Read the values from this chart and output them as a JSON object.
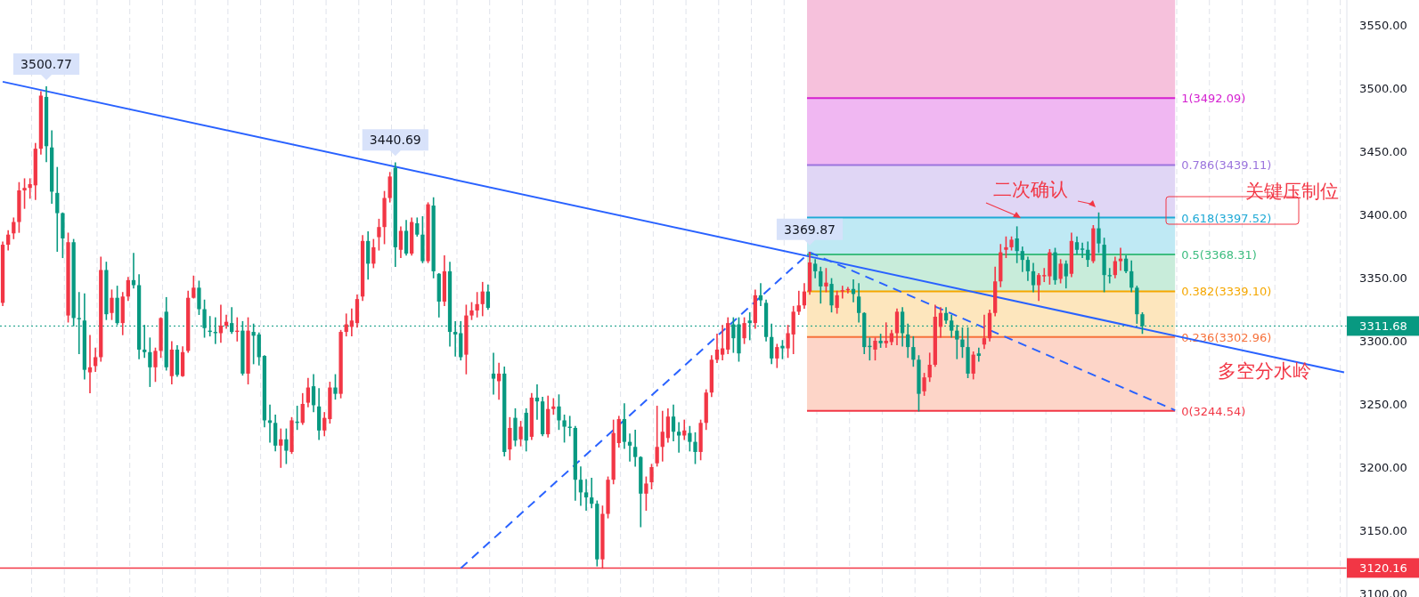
{
  "chart_data": {
    "type": "candlestick",
    "tick_labels": "y",
    "ylim": [
      3097.2,
      3569.7
    ],
    "yticks": [
      {
        "value": 3100,
        "label": "3100.00"
      },
      {
        "value": 3150,
        "label": "3150.00"
      },
      {
        "value": 3200,
        "label": "3200.00"
      },
      {
        "value": 3250,
        "label": "3250.00"
      },
      {
        "value": 3300,
        "label": "3300.00"
      },
      {
        "value": 3350,
        "label": "3350.00"
      },
      {
        "value": 3400,
        "label": "3400.00"
      },
      {
        "value": 3450,
        "label": "3450.00"
      },
      {
        "value": 3500,
        "label": "3500.00"
      },
      {
        "value": 3550,
        "label": "3550.00"
      }
    ],
    "colors": [
      "#f23645",
      "#f23645",
      "#f23645",
      "#f23645",
      "#f23645",
      "#f23645",
      "#f23645",
      "#f23645",
      "#089981",
      "#089981",
      "#089981",
      "#089981",
      "#f23645",
      "#089981",
      "#089981",
      "#089981",
      "#f23645",
      "#f23645",
      "#f23645",
      "#089981",
      "#f23645",
      "#089981",
      "#f23645",
      "#f23645",
      "#089981",
      "#089981",
      "#089981",
      "#089981",
      "#f23645",
      "#f23645",
      "#089981",
      "#f23645",
      "#089981",
      "#f23645",
      "#f23645",
      "#f23645",
      "#089981",
      "#089981",
      "#089981",
      "#089981",
      "#f23645",
      "#f23645",
      "#089981",
      "#f23645",
      "#089981",
      "#f23645",
      "#089981",
      "#089981",
      "#089981",
      "#089981",
      "#089981",
      "#f23645",
      "#089981",
      "#f23645",
      "#089981",
      "#f23645",
      "#f23645",
      "#089981",
      "#089981",
      "#f23645",
      "#f23645",
      "#089981",
      "#f23645",
      "#f23645",
      "#f23645",
      "#f23645",
      "#f23645",
      "#089981",
      "#f23645",
      "#f23645",
      "#f23645",
      "#f23645",
      "#089981",
      "#f23645",
      "#089981",
      "#f23645",
      "#089981",
      "#089981",
      "#f23645",
      "#089981",
      "#089981",
      "#f23645",
      "#089981",
      "#089981",
      "#089981",
      "#f23645",
      "#f23645",
      "#f23645",
      "#f23645",
      "#089981",
      "#089981",
      "#f23645",
      "#089981",
      "#f23645",
      "#089981",
      "#f23645",
      "#089981",
      "#f23645",
      "#089981",
      "#089981",
      "#f23645",
      "#f23645",
      "#089981",
      "#089981",
      "#089981",
      "#089981",
      "#089981",
      "#089981",
      "#089981",
      "#089981",
      "#f23645",
      "#f23645",
      "#f23645",
      "#f23645",
      "#089981",
      "#089981",
      "#089981",
      "#089981",
      "#f23645",
      "#f23645",
      "#f23645",
      "#f23645",
      "#f23645",
      "#089981",
      "#089981",
      "#f23645",
      "#089981",
      "#089981",
      "#f23645",
      "#f23645",
      "#f23645",
      "#f23645",
      "#f23645",
      "#f23645",
      "#089981",
      "#089981",
      "#f23645",
      "#089981",
      "#f23645",
      "#089981",
      "#089981",
      "#089981",
      "#f23645",
      "#089981",
      "#f23645",
      "#f23645",
      "#f23645",
      "#f23645",
      "#f23645",
      "#089981",
      "#089981",
      "#f23645",
      "#089981",
      "#f23645",
      "#f23645",
      "#f23645",
      "#089981",
      "#089981",
      "#089981",
      "#089981",
      "#f23645",
      "#089981",
      "#f23645",
      "#f23645",
      "#f23645",
      "#089981",
      "#089981",
      "#089981",
      "#089981",
      "#f23645",
      "#f23645",
      "#f23645",
      "#f23645",
      "#089981",
      "#089981",
      "#089981",
      "#089981",
      "#089981",
      "#f23645",
      "#089981",
      "#f23645",
      "#f23645",
      "#f23645",
      "#f23645",
      "#f23645",
      "#f23645",
      "#089981",
      "#089981",
      "#089981",
      "#089981",
      "#f23645",
      "#f23645",
      "#f23645",
      "#089981",
      "#f23645",
      "#089981",
      "#f23645",
      "#089981",
      "#089981",
      "#089981",
      "#f23645",
      "#089981",
      "#089981",
      "#089981",
      "#f23645",
      "#f23645",
      "#089981",
      "#089981",
      "#089981",
      "#089981",
      null,
      null,
      null,
      null,
      null,
      null,
      null,
      null,
      null,
      null,
      null,
      null,
      null,
      null,
      null,
      null,
      null,
      null,
      null,
      null,
      null,
      null,
      null,
      null,
      null,
      null,
      null,
      null,
      null,
      null,
      null,
      null,
      null,
      null,
      null,
      null,
      null
    ],
    "categories": [
      null,
      null,
      null,
      null,
      null,
      null,
      null,
      null,
      null,
      null,
      null,
      null,
      null,
      null,
      null,
      null,
      null,
      null,
      null,
      null,
      null,
      null,
      null,
      null,
      null,
      null,
      null,
      null,
      null,
      null,
      null,
      null,
      null,
      null,
      null,
      null,
      null,
      null,
      null,
      null,
      null,
      null,
      null,
      null,
      null,
      null,
      null,
      null,
      null,
      null,
      null,
      null,
      null,
      null,
      null,
      null,
      null,
      null,
      null,
      null,
      null,
      null,
      null,
      null,
      null,
      null,
      null,
      null,
      null,
      null,
      null,
      null,
      null,
      null,
      null,
      null,
      null,
      null,
      null,
      null,
      null,
      null,
      null,
      null,
      null,
      null,
      null,
      null,
      null,
      null,
      null,
      null,
      null,
      null,
      null,
      null,
      null,
      null,
      null,
      null,
      null,
      null,
      null,
      null,
      null,
      null,
      null,
      null,
      null,
      null,
      null,
      null,
      null,
      null,
      null,
      null,
      null,
      null,
      null,
      null,
      null,
      null,
      null,
      null,
      null,
      null,
      null,
      null,
      null,
      null,
      null,
      null,
      null,
      null,
      null,
      null,
      null,
      null,
      null,
      null,
      null,
      null,
      null,
      null,
      null,
      null,
      null,
      null,
      null,
      null,
      null,
      null,
      null,
      null,
      null,
      null,
      null,
      null,
      null,
      null,
      null,
      null,
      null,
      null,
      null,
      null,
      null,
      null,
      null,
      null,
      null,
      null,
      null,
      null,
      null,
      null,
      null,
      null,
      null,
      null,
      null,
      null,
      null,
      null,
      null,
      null,
      null,
      null,
      null,
      null,
      null,
      null,
      null,
      null,
      null,
      null,
      null,
      null,
      null,
      null,
      null,
      null,
      null,
      null,
      null,
      null,
      null,
      null,
      null,
      null,
      null,
      null,
      null,
      null,
      null,
      null,
      null,
      null,
      null,
      null,
      null,
      null,
      null,
      null,
      null,
      null,
      null,
      null,
      null,
      null,
      null,
      null,
      null,
      null,
      null,
      null,
      null,
      null,
      null,
      null,
      null,
      null,
      null,
      null,
      null,
      null,
      null
    ],
    "ohlc": [
      [
        3330,
        3378,
        3328,
        3376
      ],
      [
        3376,
        3387,
        3372,
        3384
      ],
      [
        3385,
        3397,
        3381,
        3394
      ],
      [
        3394,
        3425,
        3386,
        3419
      ],
      [
        3419,
        3428,
        3405,
        3421
      ],
      [
        3421,
        3428,
        3413,
        3424
      ],
      [
        3423,
        3456,
        3412,
        3452
      ],
      [
        3452,
        3497,
        3448,
        3494
      ],
      [
        3493,
        3500.77,
        3442,
        3454
      ],
      [
        3453,
        3466,
        3409,
        3418
      ],
      [
        3417,
        3437,
        3371,
        3401
      ],
      [
        3401,
        3401,
        3366,
        3381
      ],
      [
        3320,
        3385,
        3315,
        3378
      ],
      [
        3378,
        3380,
        3312,
        3318
      ],
      [
        3318,
        3338,
        3290,
        3317
      ],
      [
        3316,
        3337,
        3270,
        3277
      ],
      [
        3275,
        3304,
        3259,
        3279
      ],
      [
        3280,
        3294,
        3276,
        3287
      ],
      [
        3287,
        3366,
        3284,
        3356
      ],
      [
        3356,
        3362,
        3317,
        3321
      ],
      [
        3322,
        3340,
        3317,
        3334
      ],
      [
        3334,
        3343,
        3313,
        3314
      ],
      [
        3314,
        3338,
        3305,
        3335
      ],
      [
        3335,
        3350,
        3332,
        3348
      ],
      [
        3348,
        3369,
        3342,
        3344
      ],
      [
        3344,
        3352,
        3286,
        3293
      ],
      [
        3293,
        3312,
        3287,
        3291
      ],
      [
        3291,
        3302,
        3264,
        3279
      ],
      [
        3279,
        3294,
        3268,
        3292
      ],
      [
        3292,
        3318,
        3287,
        3318
      ],
      [
        3323,
        3334,
        3277,
        3279
      ],
      [
        3272,
        3299,
        3266,
        3293
      ],
      [
        3293,
        3296,
        3272,
        3273
      ],
      [
        3272,
        3295,
        3272,
        3291
      ],
      [
        3292,
        3339,
        3291,
        3334
      ],
      [
        3334,
        3351,
        3334,
        3342
      ],
      [
        3342,
        3347,
        3321,
        3325
      ],
      [
        3325,
        3332,
        3303,
        3310
      ],
      [
        3308,
        3319,
        3304,
        3307
      ],
      [
        3307,
        3318,
        3298,
        3306
      ],
      [
        3306,
        3328,
        3299,
        3312
      ],
      [
        3312,
        3320,
        3310,
        3315
      ],
      [
        3314,
        3326,
        3306,
        3307
      ],
      [
        3307,
        3318,
        3300,
        3308
      ],
      [
        3308,
        3315,
        3273,
        3274
      ],
      [
        3274,
        3318,
        3266,
        3308
      ],
      [
        3307,
        3313,
        3282,
        3304
      ],
      [
        3305,
        3306,
        3281,
        3287
      ],
      [
        3288,
        3288,
        3232,
        3237
      ],
      [
        3237,
        3249,
        3220,
        3235
      ],
      [
        3235,
        3241,
        3213,
        3217
      ],
      [
        3217,
        3230,
        3200,
        3222
      ],
      [
        3222,
        3230,
        3203,
        3213
      ],
      [
        3212,
        3239,
        3211,
        3237
      ],
      [
        3236,
        3248,
        3230,
        3235
      ],
      [
        3235,
        3258,
        3234,
        3250
      ],
      [
        3251,
        3270,
        3248,
        3263
      ],
      [
        3264,
        3273,
        3244,
        3249
      ],
      [
        3248,
        3262,
        3222,
        3229
      ],
      [
        3229,
        3243,
        3225,
        3239
      ],
      [
        3238,
        3267,
        3235,
        3263
      ],
      [
        3263,
        3273,
        3254,
        3258
      ],
      [
        3258,
        3308,
        3255,
        3307
      ],
      [
        3307,
        3321,
        3304,
        3313
      ],
      [
        3311,
        3325,
        3304,
        3316
      ],
      [
        3314,
        3336,
        3311,
        3333
      ],
      [
        3335,
        3383,
        3332,
        3379
      ],
      [
        3379,
        3386,
        3349,
        3361
      ],
      [
        3361,
        3380,
        3358,
        3374
      ],
      [
        3382,
        3396,
        3372,
        3390
      ],
      [
        3390,
        3418,
        3377,
        3413
      ],
      [
        3413,
        3433,
        3410,
        3430
      ],
      [
        3437,
        3440.69,
        3359,
        3374
      ],
      [
        3372,
        3390,
        3366,
        3387
      ],
      [
        3387,
        3395,
        3368,
        3369
      ],
      [
        3369,
        3397,
        3368,
        3394
      ],
      [
        3393,
        3397,
        3383,
        3384
      ],
      [
        3384,
        3398,
        3362,
        3363
      ],
      [
        3363,
        3409,
        3362,
        3408
      ],
      [
        3407,
        3413,
        3350,
        3355
      ],
      [
        3353,
        3353,
        3319,
        3331
      ],
      [
        3331,
        3367,
        3328,
        3355
      ],
      [
        3355,
        3362,
        3296,
        3307
      ],
      [
        3307,
        3315,
        3288,
        3305
      ],
      [
        3306,
        3315,
        3285,
        3287
      ],
      [
        3289,
        3328,
        3274,
        3320
      ],
      [
        3320,
        3330,
        3317,
        3324
      ],
      [
        3324,
        3338,
        3319,
        3329
      ],
      [
        3329,
        3346,
        3320,
        3339
      ],
      [
        3339,
        3344,
        3325,
        3326
      ],
      [
        3274,
        3290,
        3258,
        3270
      ],
      [
        3268,
        3282,
        3254,
        3274
      ],
      [
        3274,
        3279,
        3209,
        3212
      ],
      [
        3214,
        3239,
        3206,
        3231
      ],
      [
        3239,
        3246,
        3217,
        3221
      ],
      [
        3222,
        3236,
        3217,
        3232
      ],
      [
        3243,
        3246,
        3213,
        3221
      ],
      [
        3224,
        3258,
        3222,
        3255
      ],
      [
        3255,
        3265,
        3238,
        3252
      ],
      [
        3252,
        3255,
        3225,
        3226
      ],
      [
        3226,
        3256,
        3224,
        3246
      ],
      [
        3246,
        3254,
        3242,
        3248
      ],
      [
        3248,
        3257,
        3230,
        3237
      ],
      [
        3237,
        3241,
        3220,
        3232
      ],
      [
        3232,
        3240,
        3225,
        3231
      ],
      [
        3231,
        3232,
        3174,
        3190
      ],
      [
        3190,
        3200,
        3170,
        3180
      ],
      [
        3180,
        3190,
        3166,
        3176
      ],
      [
        3176,
        3191,
        3168,
        3171
      ],
      [
        3171,
        3173,
        3122,
        3127
      ],
      [
        3127,
        3169,
        3120.16,
        3163
      ],
      [
        3163,
        3192,
        3160,
        3190
      ],
      [
        3190,
        3237,
        3187,
        3227
      ],
      [
        3219,
        3240,
        3216,
        3238
      ],
      [
        3238,
        3250,
        3215,
        3220
      ],
      [
        3220,
        3226,
        3205,
        3217
      ],
      [
        3216,
        3229,
        3201,
        3208
      ],
      [
        3208,
        3208,
        3153,
        3179
      ],
      [
        3179,
        3192,
        3166,
        3187
      ],
      [
        3188,
        3202,
        3183,
        3200
      ],
      [
        3203,
        3248,
        3201,
        3216
      ],
      [
        3216,
        3244,
        3205,
        3228
      ],
      [
        3223,
        3246,
        3220,
        3240
      ],
      [
        3240,
        3249,
        3221,
        3228
      ],
      [
        3228,
        3235,
        3212,
        3225
      ],
      [
        3225,
        3237,
        3222,
        3229
      ],
      [
        3227,
        3232,
        3213,
        3220
      ],
      [
        3220,
        3227,
        3203,
        3212
      ],
      [
        3212,
        3237,
        3206,
        3235
      ],
      [
        3235,
        3261,
        3230,
        3259
      ],
      [
        3259,
        3288,
        3256,
        3285
      ],
      [
        3285,
        3305,
        3283,
        3293
      ],
      [
        3289,
        3312,
        3285,
        3294
      ],
      [
        3293,
        3318,
        3290,
        3314
      ],
      [
        3313,
        3318,
        3291,
        3302
      ],
      [
        3313,
        3318,
        3284,
        3290
      ],
      [
        3302,
        3318,
        3298,
        3314
      ],
      [
        3316,
        3322,
        3301,
        3314
      ],
      [
        3314,
        3340,
        3310,
        3336
      ],
      [
        3336,
        3345,
        3328,
        3332
      ],
      [
        3330,
        3332,
        3300,
        3303
      ],
      [
        3303,
        3313,
        3282,
        3286
      ],
      [
        3286,
        3297,
        3279,
        3295
      ],
      [
        3296,
        3300,
        3286,
        3294
      ],
      [
        3294,
        3312,
        3287,
        3306
      ],
      [
        3305,
        3327,
        3290,
        3323
      ],
      [
        3323,
        3339,
        3321,
        3328
      ],
      [
        3328,
        3345,
        3326,
        3339
      ],
      [
        3339,
        3369.87,
        3337,
        3362
      ],
      [
        3361,
        3364,
        3350,
        3355
      ],
      [
        3355,
        3358,
        3330,
        3343
      ],
      [
        3343,
        3357,
        3339,
        3346
      ],
      [
        3345,
        3349,
        3323,
        3328
      ],
      [
        3326,
        3339,
        3322,
        3336
      ],
      [
        3339,
        3343,
        3334,
        3340
      ],
      [
        3340,
        3342,
        3338,
        3341
      ],
      [
        3341,
        3348,
        3331,
        3337
      ],
      [
        3335,
        3345,
        3315,
        3322
      ],
      [
        3322,
        3322,
        3290,
        3295
      ],
      [
        3296,
        3302,
        3285,
        3295
      ],
      [
        3293,
        3302,
        3285,
        3300
      ],
      [
        3300,
        3305,
        3295,
        3298
      ],
      [
        3298,
        3314,
        3295,
        3300
      ],
      [
        3299,
        3308,
        3297,
        3306
      ],
      [
        3306,
        3325,
        3297,
        3323
      ],
      [
        3323,
        3326,
        3296,
        3306
      ],
      [
        3305,
        3313,
        3287,
        3295
      ],
      [
        3295,
        3303,
        3280,
        3285
      ],
      [
        3285,
        3288,
        3244.54,
        3258
      ],
      [
        3260,
        3274,
        3257,
        3271
      ],
      [
        3271,
        3290,
        3268,
        3281
      ],
      [
        3281,
        3328,
        3280,
        3319
      ],
      [
        3311,
        3326,
        3303,
        3322
      ],
      [
        3322,
        3326,
        3314,
        3316
      ],
      [
        3316,
        3320,
        3303,
        3308
      ],
      [
        3308,
        3312,
        3286,
        3301
      ],
      [
        3301,
        3310,
        3287,
        3295
      ],
      [
        3295,
        3310,
        3271,
        3274
      ],
      [
        3274,
        3291,
        3270,
        3289
      ],
      [
        3290,
        3294,
        3284,
        3288
      ],
      [
        3297,
        3320,
        3294,
        3302
      ],
      [
        3302,
        3324,
        3300,
        3322
      ],
      [
        3322,
        3358,
        3320,
        3347
      ],
      [
        3347,
        3376,
        3343,
        3370
      ],
      [
        3372,
        3382,
        3366,
        3374
      ],
      [
        3374,
        3382,
        3372,
        3380
      ],
      [
        3381,
        3390,
        3362,
        3371
      ],
      [
        3371,
        3374,
        3355,
        3364
      ],
      [
        3364,
        3366,
        3348,
        3355
      ],
      [
        3355,
        3361,
        3339,
        3344
      ],
      [
        3344,
        3353,
        3332,
        3352
      ],
      [
        3351,
        3357,
        3347,
        3352
      ],
      [
        3351,
        3372,
        3345,
        3370
      ],
      [
        3370,
        3373,
        3345,
        3348
      ],
      [
        3349,
        3364,
        3346,
        3361
      ],
      [
        3361,
        3363,
        3342,
        3351
      ],
      [
        3353,
        3385,
        3351,
        3379
      ],
      [
        3378,
        3382,
        3369,
        3372
      ],
      [
        3373,
        3377,
        3366,
        3372
      ],
      [
        3372,
        3378,
        3359,
        3364
      ],
      [
        3363,
        3391,
        3362,
        3389
      ],
      [
        3389,
        3401,
        3370,
        3377
      ],
      [
        3376,
        3381,
        3339,
        3352
      ],
      [
        3352,
        3357,
        3346,
        3351
      ],
      [
        3352,
        3366,
        3350,
        3363
      ],
      [
        3363,
        3373,
        3356,
        3365
      ],
      [
        3365,
        3367,
        3354,
        3355
      ],
      [
        3355,
        3363,
        3339,
        3342
      ],
      [
        3342,
        3343,
        3314,
        3321
      ],
      [
        3321,
        3322,
        3306,
        3311.68
      ],
      null,
      null,
      null,
      null,
      null,
      null,
      null,
      null,
      null,
      null,
      null,
      null,
      null,
      null,
      null,
      null,
      null,
      null,
      null,
      null,
      null,
      null,
      null,
      null,
      null,
      null,
      null,
      null,
      null,
      null,
      null,
      null,
      null,
      null,
      null,
      null,
      null
    ],
    "series": [
      {
        "type": "line",
        "color": "#2962ff",
        "values": [
          3505,
          null,
          null,
          null,
          null,
          null,
          null,
          null,
          null,
          null,
          null,
          null,
          null,
          null,
          null,
          null,
          null,
          null,
          null,
          null,
          null,
          null,
          null,
          null,
          null,
          null,
          null,
          null,
          null,
          null,
          null,
          null,
          null,
          null,
          null,
          null,
          null,
          null,
          null,
          null,
          null,
          null,
          null,
          null,
          null,
          null,
          null,
          null,
          null,
          null,
          null,
          null,
          null,
          null,
          null,
          null,
          null,
          null,
          null,
          null,
          null,
          null,
          null,
          null,
          null,
          null,
          null,
          null,
          null,
          null,
          null,
          null,
          null,
          null,
          null,
          null,
          null,
          null,
          null,
          null,
          null,
          null,
          null,
          null,
          null,
          null,
          null,
          null,
          null,
          null,
          null,
          null,
          null,
          null,
          null,
          null,
          null,
          null,
          null,
          null,
          null,
          null,
          null,
          null,
          null,
          null,
          null,
          null,
          null,
          null,
          null,
          null,
          null,
          null,
          null,
          null,
          null,
          null,
          null,
          null,
          null,
          null,
          null,
          null,
          null,
          null,
          null,
          null,
          null,
          null,
          null,
          null,
          null,
          null,
          null,
          null,
          null,
          null,
          null,
          null,
          null,
          null,
          null,
          null,
          null,
          null,
          null,
          null,
          null,
          null,
          null,
          null,
          null,
          null,
          null,
          null,
          null,
          null,
          null,
          null,
          null,
          null,
          null,
          null,
          null,
          null,
          null,
          null,
          null,
          null,
          null,
          null,
          null,
          null,
          null,
          null,
          null,
          null,
          null,
          null,
          null,
          null,
          null,
          null,
          null,
          null,
          null,
          null,
          null,
          null,
          null,
          null,
          null,
          null,
          null,
          null,
          null,
          null,
          null,
          null,
          null,
          null,
          null,
          null,
          null,
          null,
          null,
          null,
          null,
          null,
          null,
          null,
          null,
          null,
          null,
          null,
          null,
          null,
          null,
          null,
          null,
          null,
          null,
          null,
          null,
          null,
          null,
          null,
          null,
          null,
          null,
          null,
          null,
          null,
          null,
          null,
          null,
          null,
          null,
          null,
          null,
          null,
          null,
          null,
          null,
          null,
          3275
        ]
      },
      {
        "type": "line",
        "color": "#2962ff",
        "line_style": "dashed",
        "values": [
          null,
          null,
          null,
          null,
          null,
          null,
          null,
          null,
          null,
          null,
          null,
          null,
          null,
          null,
          null,
          null,
          null,
          null,
          null,
          null,
          null,
          null,
          null,
          null,
          null,
          null,
          null,
          null,
          null,
          null,
          null,
          null,
          null,
          null,
          null,
          null,
          null,
          null,
          null,
          null,
          null,
          null,
          null,
          null,
          null,
          null,
          null,
          null,
          null,
          null,
          null,
          null,
          null,
          null,
          null,
          null,
          null,
          null,
          null,
          null,
          null,
          null,
          null,
          null,
          null,
          null,
          null,
          null,
          null,
          null,
          null,
          null,
          null,
          null,
          null,
          null,
          null,
          null,
          null,
          null,
          null,
          null,
          null,
          null,
          3120,
          null,
          null,
          null,
          null,
          null,
          null,
          null,
          null,
          null,
          null,
          null,
          null,
          null,
          null,
          null,
          null,
          null,
          null,
          null,
          null,
          null,
          null,
          null,
          null,
          null,
          null,
          null,
          null,
          null,
          null,
          null,
          null,
          null,
          null,
          null,
          null,
          null,
          null,
          null,
          null,
          null,
          null,
          null,
          null,
          null,
          null,
          null,
          null,
          null,
          null,
          null,
          null,
          null,
          null,
          null,
          null,
          null,
          null,
          null,
          null,
          null,
          null,
          null,
          3370,
          null,
          null,
          null,
          null,
          null,
          null,
          null,
          null,
          null,
          null,
          null,
          null,
          null,
          null,
          null,
          null,
          null,
          null,
          null,
          null,
          null,
          null,
          null,
          null,
          null,
          null,
          null,
          null,
          null,
          null,
          null,
          null,
          null,
          null,
          null,
          null,
          null,
          null,
          null,
          null,
          null,
          null,
          null,
          null,
          null,
          null,
          null,
          null,
          null,
          null,
          null,
          null,
          null,
          null,
          null,
          null,
          null,
          null,
          null,
          null,
          null,
          null,
          null,
          null,
          null,
          null,
          null,
          null,
          null,
          null,
          null,
          null,
          null,
          null,
          null,
          null,
          null,
          null,
          null,
          null,
          null,
          null,
          null,
          null,
          null,
          null,
          null,
          null,
          null,
          null,
          null,
          null,
          null,
          null,
          null,
          null,
          null,
          null
        ]
      },
      {
        "type": "line",
        "color": "#2962ff",
        "line_style": "dashed",
        "values": [
          null,
          null,
          null,
          null,
          null,
          null,
          null,
          null,
          null,
          null,
          null,
          null,
          null,
          null,
          null,
          null,
          null,
          null,
          null,
          null,
          null,
          null,
          null,
          null,
          null,
          null,
          null,
          null,
          null,
          null,
          null,
          null,
          null,
          null,
          null,
          null,
          null,
          null,
          null,
          null,
          null,
          null,
          null,
          null,
          null,
          null,
          null,
          null,
          null,
          null,
          null,
          null,
          null,
          null,
          null,
          null,
          null,
          null,
          null,
          null,
          null,
          null,
          null,
          null,
          null,
          null,
          null,
          null,
          null,
          null,
          null,
          null,
          null,
          null,
          null,
          null,
          null,
          null,
          null,
          null,
          null,
          null,
          null,
          null,
          null,
          null,
          null,
          null,
          null,
          null,
          null,
          null,
          null,
          null,
          null,
          null,
          null,
          null,
          null,
          null,
          null,
          null,
          null,
          null,
          null,
          null,
          null,
          null,
          null,
          null,
          null,
          null,
          null,
          null,
          null,
          null,
          null,
          null,
          null,
          null,
          null,
          null,
          null,
          null,
          null,
          null,
          null,
          null,
          null,
          null,
          null,
          null,
          null,
          null,
          null,
          null,
          null,
          null,
          null,
          null,
          null,
          null,
          null,
          null,
          null,
          null,
          null,
          null,
          3370,
          null,
          null,
          null,
          null,
          null,
          null,
          null,
          null,
          null,
          null,
          null,
          null,
          null,
          null,
          null,
          null,
          null,
          null,
          null,
          null,
          null,
          null,
          null,
          null,
          null,
          null,
          null,
          null,
          null,
          null,
          null,
          null,
          null,
          null,
          null,
          null,
          null,
          null,
          null,
          null,
          null,
          null,
          null,
          null,
          null,
          null,
          null,
          null,
          null,
          null,
          null,
          null,
          null,
          null,
          null,
          null,
          null,
          null,
          null,
          null,
          null,
          null,
          null,
          null,
          null,
          null,
          3245,
          null,
          null,
          null,
          null,
          null,
          null,
          null,
          null,
          null,
          null,
          null,
          null,
          null,
          null,
          null,
          null,
          null,
          null,
          null,
          null,
          null,
          null,
          null,
          null,
          null,
          null,
          null,
          null,
          null,
          null,
          null
        ]
      }
    ],
    "bands": [
      {
        "axis": "y",
        "from": 3244.54,
        "to": 3302.96,
        "color": "#fdd5c8"
      },
      {
        "axis": "y",
        "from": 3302.96,
        "to": 3339.1,
        "color": "#fde6bd"
      },
      {
        "axis": "y",
        "from": 3339.1,
        "to": 3368.31,
        "color": "#c8ecda"
      },
      {
        "axis": "y",
        "from": 3368.31,
        "to": 3397.52,
        "color": "#bfe9f4"
      },
      {
        "axis": "y",
        "from": 3397.52,
        "to": 3439.11,
        "color": "#e0d6f5"
      },
      {
        "axis": "y",
        "from": 3439.11,
        "to": 3492.09,
        "color": "#f0b7f2"
      },
      {
        "axis": "y",
        "from": 3492.09,
        "to": 3569.7,
        "color": "#f6c1dc"
      }
    ],
    "ref_lines": [
      {
        "axis": "y",
        "value": 3311.68,
        "label": "3311.68",
        "color": "#089981",
        "line_style": "dotted"
      },
      {
        "axis": "y",
        "value": 3120.16,
        "label": "3120.16",
        "color": "#f23645"
      },
      {
        "axis": "y",
        "value": 3244.54,
        "label": "0(3244.54)",
        "color": "#f23645"
      },
      {
        "axis": "y",
        "value": 3302.96,
        "label": "0.236(3302.96)",
        "color": "#f7723c"
      },
      {
        "axis": "y",
        "value": 3339.1,
        "label": "0.382(3339.10)",
        "color": "#f5a700"
      },
      {
        "axis": "y",
        "value": 3368.31,
        "label": "0.5(3368.31)",
        "color": "#3dbd80"
      },
      {
        "axis": "y",
        "value": 3397.52,
        "label": "0.618(3397.52)",
        "color": "#1fa9d6"
      },
      {
        "axis": "y",
        "value": 3439.11,
        "label": "0.786(3439.11)",
        "color": "#9b74dd"
      },
      {
        "axis": "y",
        "value": 3492.09,
        "label": "1(3492.09)",
        "color": "#d41fd0"
      }
    ],
    "annotations": [
      {
        "text": "3500.77",
        "y": 3500.77
      },
      {
        "text": "3440.69",
        "y": 3440.69
      },
      {
        "text": "3369.87",
        "y": 3369.87
      },
      "二次确认",
      "关键压制位",
      "多空分水岭"
    ]
  }
}
